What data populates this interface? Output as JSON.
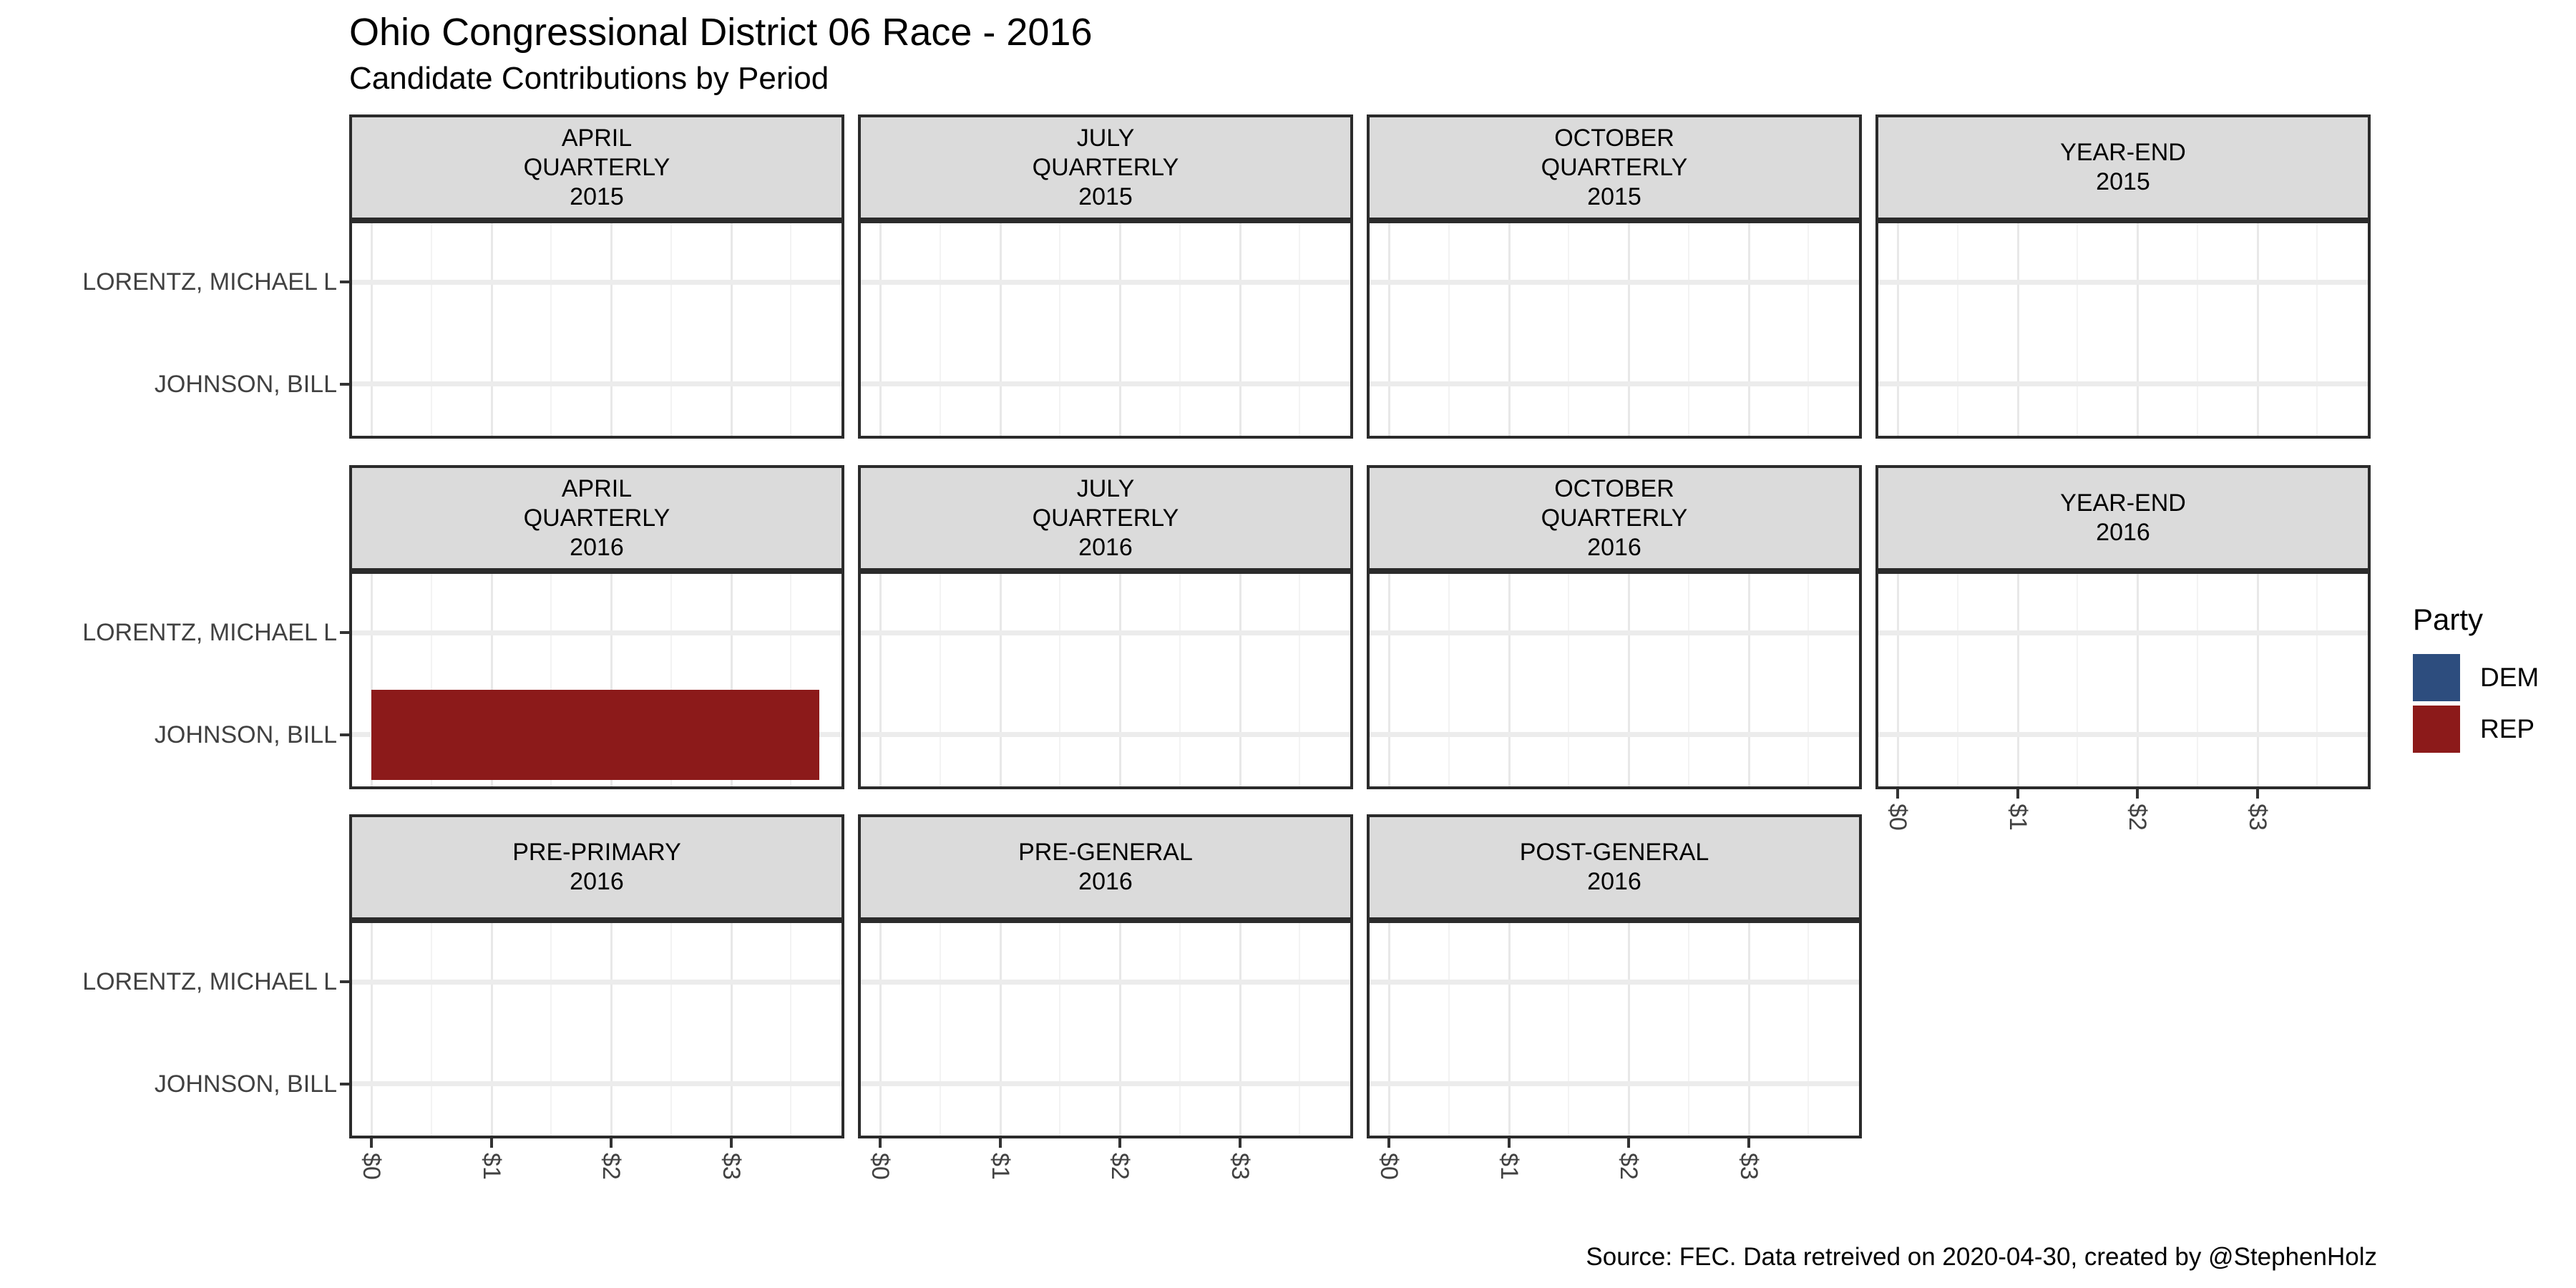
{
  "chart_data": {
    "type": "bar",
    "orientation": "horizontal",
    "title": "Ohio Congressional District 06 Race - 2016",
    "subtitle": "Candidate Contributions by Period",
    "caption": "Source: FEC. Data retreived on 2020-04-30, created by @StephenHolz",
    "categories": [
      "LORENTZ, MICHAEL L",
      "JOHNSON, BILL"
    ],
    "x_tick_labels": [
      "$0",
      "$1",
      "$2",
      "$3"
    ],
    "xlim": [
      0,
      3.93
    ],
    "grid": true,
    "facet_layout": {
      "rows": 3,
      "cols": 4
    },
    "legend": {
      "title": "Party",
      "position": "right",
      "entries": [
        {
          "label": "DEM",
          "color": "#2D4D7E"
        },
        {
          "label": "REP",
          "color": "#8C1A1A"
        }
      ]
    },
    "facets": [
      {
        "label": "APRIL\nQUARTERLY\n2015",
        "row": 1,
        "col": 1,
        "bars": []
      },
      {
        "label": "JULY\nQUARTERLY\n2015",
        "row": 1,
        "col": 2,
        "bars": []
      },
      {
        "label": "OCTOBER\nQUARTERLY\n2015",
        "row": 1,
        "col": 3,
        "bars": []
      },
      {
        "label": "YEAR-END\n2015",
        "row": 1,
        "col": 4,
        "bars": []
      },
      {
        "label": "APRIL\nQUARTERLY\n2016",
        "row": 2,
        "col": 1,
        "bars": [
          {
            "candidate": "JOHNSON, BILL",
            "party": "REP",
            "value": 3.74
          }
        ]
      },
      {
        "label": "JULY\nQUARTERLY\n2016",
        "row": 2,
        "col": 2,
        "bars": []
      },
      {
        "label": "OCTOBER\nQUARTERLY\n2016",
        "row": 2,
        "col": 3,
        "bars": []
      },
      {
        "label": "YEAR-END\n2016",
        "row": 2,
        "col": 4,
        "bars": []
      },
      {
        "label": "PRE-PRIMARY\n2016",
        "row": 3,
        "col": 1,
        "bars": []
      },
      {
        "label": "PRE-GENERAL\n2016",
        "row": 3,
        "col": 2,
        "bars": []
      },
      {
        "label": "POST-GENERAL\n2016",
        "row": 3,
        "col": 3,
        "bars": []
      }
    ]
  }
}
